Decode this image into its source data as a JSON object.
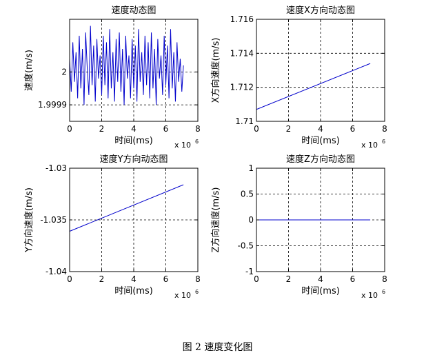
{
  "caption": "图 2  速度变化图",
  "chart_data": [
    {
      "type": "line",
      "title": "速度动态图",
      "xlabel": "时间(ms)",
      "ylabel": "速度(m/s)",
      "x_exponent_label": "x 10",
      "x_exponent": "6",
      "xlim": [
        0,
        8
      ],
      "ylim": [
        1.99985,
        2.00016
      ],
      "xticks": [
        0,
        2,
        4,
        6,
        8
      ],
      "yticks": [
        1.9999,
        2
      ],
      "ytick_labels": [
        "1.9999",
        "2"
      ],
      "grid": true,
      "series": [
        {
          "color": "#0000cc",
          "x": [
            0,
            0.1,
            0.2,
            0.3,
            0.4,
            0.5,
            0.6,
            0.7,
            0.8,
            0.9,
            1.0,
            1.1,
            1.2,
            1.3,
            1.4,
            1.5,
            1.6,
            1.7,
            1.8,
            1.9,
            2.0,
            2.1,
            2.2,
            2.3,
            2.4,
            2.5,
            2.6,
            2.7,
            2.8,
            2.9,
            3.0,
            3.1,
            3.2,
            3.3,
            3.4,
            3.5,
            3.6,
            3.7,
            3.8,
            3.9,
            4.0,
            4.1,
            4.2,
            4.3,
            4.4,
            4.5,
            4.6,
            4.7,
            4.8,
            4.9,
            5.0,
            5.1,
            5.2,
            5.3,
            5.4,
            5.5,
            5.6,
            5.7,
            5.8,
            5.9,
            6.0,
            6.1,
            6.2,
            6.3,
            6.4,
            6.5,
            6.6,
            6.7,
            6.8,
            6.9,
            7.0,
            7.1
          ],
          "y": [
            2.00004,
            1.99994,
            2.00009,
            1.99997,
            2.00006,
            1.99992,
            2.00011,
            1.99995,
            2.00007,
            1.9999,
            2.00012,
            2.00001,
            1.99993,
            2.00014,
            1.99996,
            2.00008,
            1.99991,
            2.0001,
            1.99998,
            2.00005,
            1.99993,
            2.00011,
            1.99996,
            2.00009,
            1.99992,
            2.00013,
            1.99995,
            2.00006,
            1.99991,
            2.0001,
            1.99997,
            2.00012,
            1.99994,
            2.00007,
            1.9999,
            2.00011,
            1.99998,
            2.00005,
            1.99992,
            2.0001,
            1.99995,
            2.00008,
            1.99991,
            2.00013,
            1.99997,
            2.00006,
            1.99993,
            2.00011,
            1.99996,
            2.00009,
            1.99992,
            2.00012,
            1.99995,
            2.00007,
            1.9999,
            2.0001,
            1.99998,
            2.00005,
            1.99993,
            2.00011,
            1.99996,
            2.00008,
            1.99992,
            2.00013,
            1.99995,
            2.00006,
            1.99991,
            2.00009,
            1.99997,
            2.00004,
            1.99994,
            2.00002
          ]
        }
      ]
    },
    {
      "type": "line",
      "title": "速度X方向动态图",
      "xlabel": "时间(ms)",
      "ylabel": "X方向速度(m/s)",
      "x_exponent_label": "x 10",
      "x_exponent": "6",
      "xlim": [
        0,
        8
      ],
      "ylim": [
        1.71,
        1.716
      ],
      "xticks": [
        0,
        2,
        4,
        6,
        8
      ],
      "yticks": [
        1.71,
        1.712,
        1.714,
        1.716
      ],
      "ytick_labels": [
        "1.71",
        "1.712",
        "1.714",
        "1.716"
      ],
      "grid": true,
      "series": [
        {
          "color": "#0000cc",
          "x": [
            0,
            7.1
          ],
          "y": [
            1.7107,
            1.7134
          ]
        }
      ]
    },
    {
      "type": "line",
      "title": "速度Y方向动态图",
      "xlabel": "时间(ms)",
      "ylabel": "Y方向速度(m/s)",
      "x_exponent_label": "x 10",
      "x_exponent": "6",
      "xlim": [
        0,
        8
      ],
      "ylim": [
        -1.04,
        -1.03
      ],
      "xticks": [
        0,
        2,
        4,
        6,
        8
      ],
      "yticks": [
        -1.04,
        -1.035,
        -1.03
      ],
      "ytick_labels": [
        "-1.04",
        "-1.035",
        "-1.03"
      ],
      "grid": true,
      "series": [
        {
          "color": "#0000cc",
          "x": [
            0,
            7.1
          ],
          "y": [
            -1.0361,
            -1.0316
          ]
        }
      ]
    },
    {
      "type": "line",
      "title": "速度Z方向动态图",
      "xlabel": "时间(ms)",
      "ylabel": "Z方向速度(m/s)",
      "x_exponent_label": "x 10",
      "x_exponent": "6",
      "xlim": [
        0,
        8
      ],
      "ylim": [
        -1,
        1
      ],
      "xticks": [
        0,
        2,
        4,
        6,
        8
      ],
      "yticks": [
        -1,
        -0.5,
        0,
        0.5,
        1
      ],
      "ytick_labels": [
        "-1",
        "-0.5",
        "0",
        "0.5",
        "1"
      ],
      "grid": true,
      "series": [
        {
          "color": "#0000cc",
          "x": [
            0,
            7.1
          ],
          "y": [
            0,
            0
          ]
        }
      ]
    }
  ]
}
